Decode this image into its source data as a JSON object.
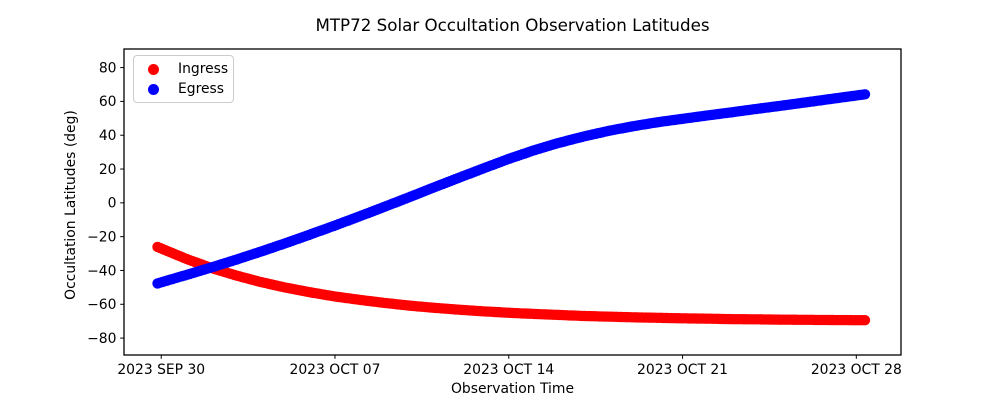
{
  "chart_data": {
    "type": "scatter",
    "title": "MTP72 Solar Occultation Observation Latitudes",
    "xlabel": "Observation Time",
    "ylabel": "Occultation Latitudes (deg)",
    "x_unit": "days since 2023 SEP 30",
    "x_ticks": [
      {
        "day": 0,
        "label": "2023 SEP 30"
      },
      {
        "day": 7,
        "label": "2023 OCT 07"
      },
      {
        "day": 14,
        "label": "2023 OCT 14"
      },
      {
        "day": 21,
        "label": "2023 OCT 21"
      },
      {
        "day": 28,
        "label": "2023 OCT 28"
      }
    ],
    "y_ticks": [
      80,
      60,
      40,
      20,
      0,
      -20,
      -40,
      -60,
      -80
    ],
    "xlim_days": [
      -1.5,
      29.8
    ],
    "ylim": [
      -90,
      91
    ],
    "grid": false,
    "legend_position": "upper left",
    "legend": [
      {
        "label": "Ingress",
        "color": "#ff0000"
      },
      {
        "label": "Egress",
        "color": "#0000ff"
      }
    ],
    "marker": {
      "shape": "circle",
      "radius_px": 5.2,
      "sample_step_days": 0.1
    },
    "series_t_range": [
      -0.15,
      28.35
    ],
    "series": [
      {
        "name": "Ingress",
        "color": "#ff0000",
        "days": [
          0,
          1,
          2,
          3,
          4,
          5,
          6,
          7,
          8,
          9,
          10,
          11,
          12,
          13,
          14,
          15,
          16,
          17,
          18,
          19,
          20,
          21,
          22,
          23,
          24,
          25,
          26,
          27,
          28
        ],
        "values": [
          -27.0,
          -33.1,
          -38.4,
          -42.9,
          -46.8,
          -50.1,
          -52.9,
          -55.4,
          -57.4,
          -59.2,
          -60.8,
          -62.1,
          -63.2,
          -64.2,
          -65.0,
          -65.7,
          -66.3,
          -66.9,
          -67.3,
          -67.7,
          -68.0,
          -68.3,
          -68.5,
          -68.8,
          -68.9,
          -69.1,
          -69.2,
          -69.3,
          -69.4
        ]
      },
      {
        "name": "Egress",
        "color": "#0000ff",
        "days": [
          0,
          1,
          2,
          3,
          4,
          5,
          6,
          7,
          8,
          9,
          10,
          11,
          12,
          13,
          14,
          15,
          16,
          17,
          18,
          19,
          20,
          21,
          22,
          23,
          24,
          25,
          26,
          27,
          28
        ],
        "values": [
          -47.0,
          -42.7,
          -38.3,
          -33.7,
          -28.9,
          -23.9,
          -18.7,
          -13.4,
          -7.9,
          -2.3,
          3.4,
          9.2,
          14.9,
          20.5,
          26.0,
          31.0,
          35.4,
          39.2,
          42.5,
          45.3,
          47.7,
          49.7,
          51.7,
          53.6,
          55.6,
          57.5,
          59.5,
          61.5,
          63.5
        ]
      }
    ]
  }
}
